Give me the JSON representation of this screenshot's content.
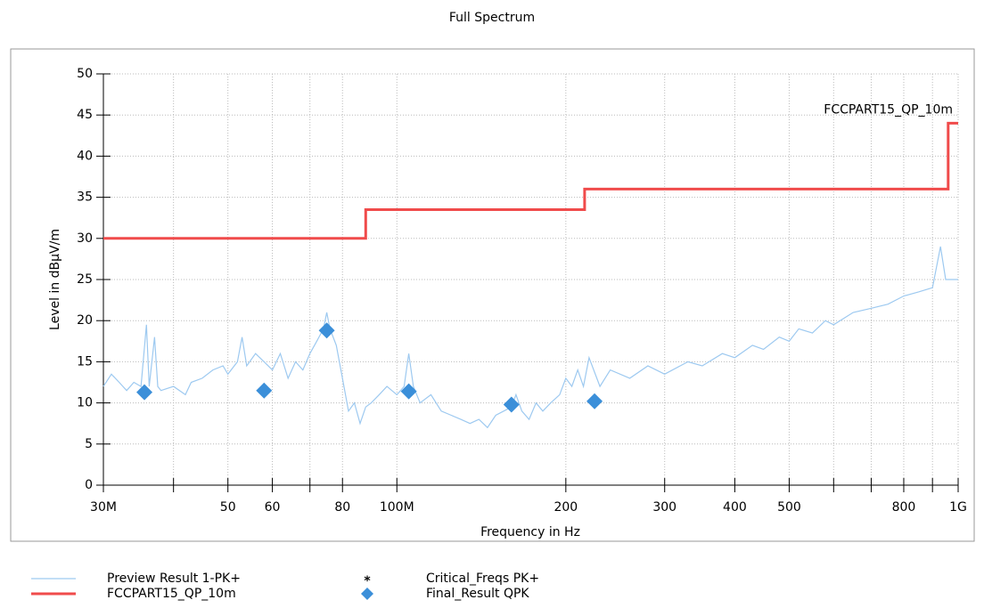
{
  "chart_data": {
    "type": "line",
    "title": "Full Spectrum",
    "xlabel": "Frequency in Hz",
    "ylabel": "Level in dBµV/m",
    "xscale": "log",
    "grid": true,
    "xlim": [
      30000000,
      1000000000
    ],
    "ylim": [
      0,
      50
    ],
    "yticks": [
      0,
      5,
      10,
      15,
      20,
      25,
      30,
      35,
      40,
      45,
      50
    ],
    "xticks": [
      {
        "value": 30000000,
        "label": "30M"
      },
      {
        "value": 50000000,
        "label": "50"
      },
      {
        "value": 60000000,
        "label": "60"
      },
      {
        "value": 80000000,
        "label": "80"
      },
      {
        "value": 100000000,
        "label": "100M"
      },
      {
        "value": 200000000,
        "label": "200"
      },
      {
        "value": 300000000,
        "label": "300"
      },
      {
        "value": 400000000,
        "label": "400"
      },
      {
        "value": 500000000,
        "label": "500"
      },
      {
        "value": 800000000,
        "label": "800"
      },
      {
        "value": 1000000000,
        "label": "1G"
      }
    ],
    "xminorticks": [
      40000000,
      70000000,
      600000000,
      700000000,
      900000000
    ],
    "annotations": [
      {
        "text": "FCCPART15_QP_10m",
        "x": 1000000000,
        "y": 44
      }
    ],
    "series": [
      {
        "name": "Preview Result 1-PK+",
        "kind": "line",
        "color": "#9dc9f0",
        "x": [
          30000000.0,
          31000000.0,
          32000000.0,
          33000000.0,
          34000000.0,
          35000000.0,
          35800000.0,
          36200000.0,
          37000000.0,
          37500000.0,
          38000000.0,
          40000000.0,
          42000000.0,
          43000000.0,
          45000000.0,
          47000000.0,
          49000000.0,
          50000000.0,
          52000000.0,
          53000000.0,
          54000000.0,
          56000000.0,
          58000000.0,
          60000000.0,
          62000000.0,
          64000000.0,
          66000000.0,
          68000000.0,
          70000000.0,
          72000000.0,
          74000000.0,
          75000000.0,
          76000000.0,
          78000000.0,
          80000000.0,
          82000000.0,
          84000000.0,
          86000000.0,
          88000000.0,
          90000000.0,
          93000000.0,
          96000000.0,
          100000000.0,
          103000000.0,
          105000000.0,
          107000000.0,
          110000000.0,
          115000000.0,
          120000000.0,
          125000000.0,
          130000000.0,
          135000000.0,
          140000000.0,
          145000000.0,
          150000000.0,
          155000000.0,
          160000000.0,
          163000000.0,
          167000000.0,
          172000000.0,
          177000000.0,
          182000000.0,
          188000000.0,
          195000000.0,
          200000000.0,
          205000000.0,
          210000000.0,
          215000000.0,
          220000000.0,
          230000000.0,
          240000000.0,
          260000000.0,
          280000000.0,
          300000000.0,
          330000000.0,
          350000000.0,
          380000000.0,
          400000000.0,
          430000000.0,
          450000000.0,
          480000000.0,
          500000000.0,
          520000000.0,
          550000000.0,
          580000000.0,
          600000000.0,
          650000000.0,
          700000000.0,
          750000000.0,
          800000000.0,
          850000000.0,
          900000000.0,
          930000000.0,
          950000000.0,
          1000000000.0
        ],
        "values": [
          12,
          13.5,
          12.5,
          11.5,
          12.5,
          12,
          19.5,
          12,
          18,
          12,
          11.5,
          12,
          11,
          12.5,
          13,
          14,
          14.5,
          13.5,
          15,
          18,
          14.5,
          16,
          15,
          14,
          16,
          13,
          15,
          14,
          16,
          17.5,
          19,
          21,
          19,
          17,
          13,
          9,
          10,
          7.5,
          9.5,
          10,
          11,
          12,
          11,
          12,
          16,
          12,
          10,
          11,
          9,
          8.5,
          8,
          7.5,
          8,
          7,
          8.5,
          9,
          9.5,
          11,
          9,
          8,
          10,
          9,
          10,
          11,
          13,
          12,
          14,
          12,
          15.5,
          12,
          14,
          13,
          14.5,
          13.5,
          15,
          14.5,
          16,
          15.5,
          17,
          16.5,
          18,
          17.5,
          19,
          18.5,
          20,
          19.5,
          21,
          21.5,
          22,
          23,
          23.5,
          24,
          29,
          25,
          25
        ]
      },
      {
        "name": "FCCPART15_QP_10m",
        "kind": "line",
        "color": "#f04b4b",
        "x": [
          30000000.0,
          88000000.0,
          88000000.0,
          216000000.0,
          216000000.0,
          960000000.0,
          960000000.0,
          1000000000.0
        ],
        "values": [
          30,
          30,
          33.5,
          33.5,
          36,
          36,
          44,
          44
        ]
      },
      {
        "name": "Critical_Freqs PK+",
        "kind": "star",
        "color": "#e02020",
        "x": [],
        "values": []
      },
      {
        "name": "Final_Result QPK",
        "kind": "diamond",
        "color": "#3b8fd9",
        "x": [
          35500000.0,
          58000000.0,
          75000000.0,
          105000000.0,
          160000000.0,
          225000000.0
        ],
        "values": [
          11.3,
          11.5,
          18.8,
          11.4,
          9.8,
          10.2
        ]
      }
    ]
  }
}
